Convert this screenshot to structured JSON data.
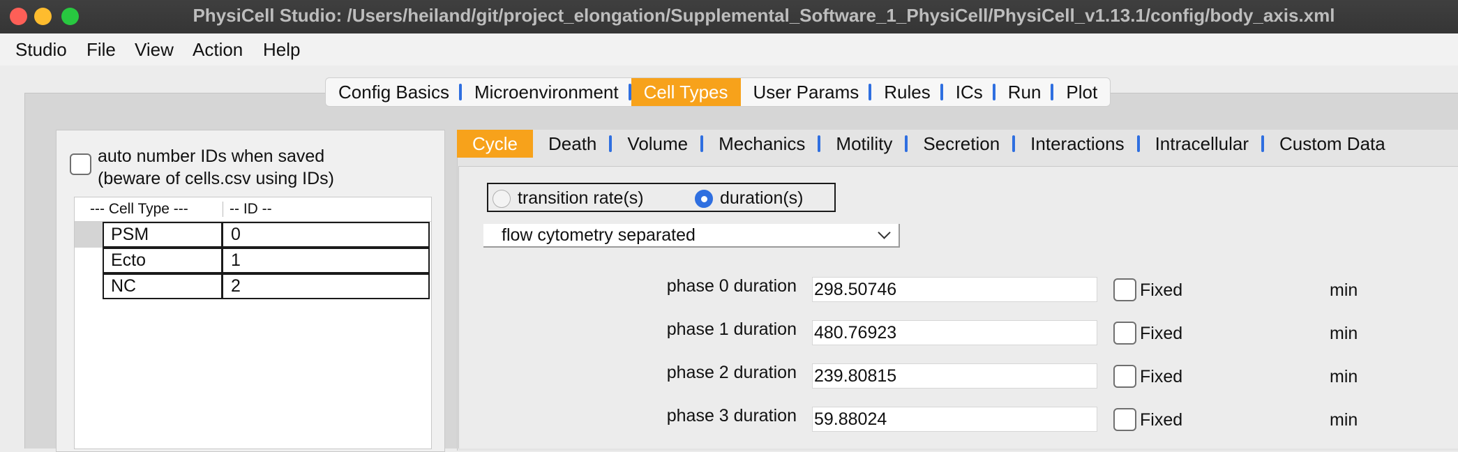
{
  "window": {
    "title": "PhysiCell Studio: /Users/heiland/git/project_elongation/Supplemental_Software_1_PhysiCell/PhysiCell_v1.13.1/config/body_axis.xml"
  },
  "menu": [
    "Studio",
    "File",
    "View",
    "Action",
    "Help"
  ],
  "top_tabs": [
    "Config Basics",
    "Microenvironment",
    "Cell Types",
    "User Params",
    "Rules",
    "ICs",
    "Run",
    "Plot"
  ],
  "top_tabs_active": "Cell Types",
  "left": {
    "auto_number_line1": "auto number IDs when saved",
    "auto_number_line2": "(beware of cells.csv using IDs)",
    "table_header_type": "---  Cell Type ---",
    "table_header_id": "-- ID --",
    "rows": [
      {
        "name": "PSM",
        "id": "0"
      },
      {
        "name": "Ecto",
        "id": "1"
      },
      {
        "name": "NC",
        "id": "2"
      }
    ]
  },
  "sub_tabs": [
    "Cycle",
    "Death",
    "Volume",
    "Mechanics",
    "Motility",
    "Secretion",
    "Interactions",
    "Intracellular",
    "Custom Data"
  ],
  "sub_tabs_active": "Cycle",
  "cycle": {
    "radio_rate": "transition rate(s)",
    "radio_duration": "duration(s)",
    "model": "flow cytometry separated",
    "phases": [
      {
        "label": "phase 0 duration",
        "value": "298.50746",
        "fixed": "Fixed",
        "units": "min"
      },
      {
        "label": "phase 1 duration",
        "value": "480.76923",
        "fixed": "Fixed",
        "units": "min"
      },
      {
        "label": "phase 2 duration",
        "value": "239.80815",
        "fixed": "Fixed",
        "units": "min"
      },
      {
        "label": "phase 3 duration",
        "value": "59.88024",
        "fixed": "Fixed",
        "units": "min"
      }
    ]
  },
  "colors": {
    "accent_tab": "#f7a21b",
    "tab_separator": "#2f6fe0",
    "radio_selected": "#2f6fe0"
  }
}
